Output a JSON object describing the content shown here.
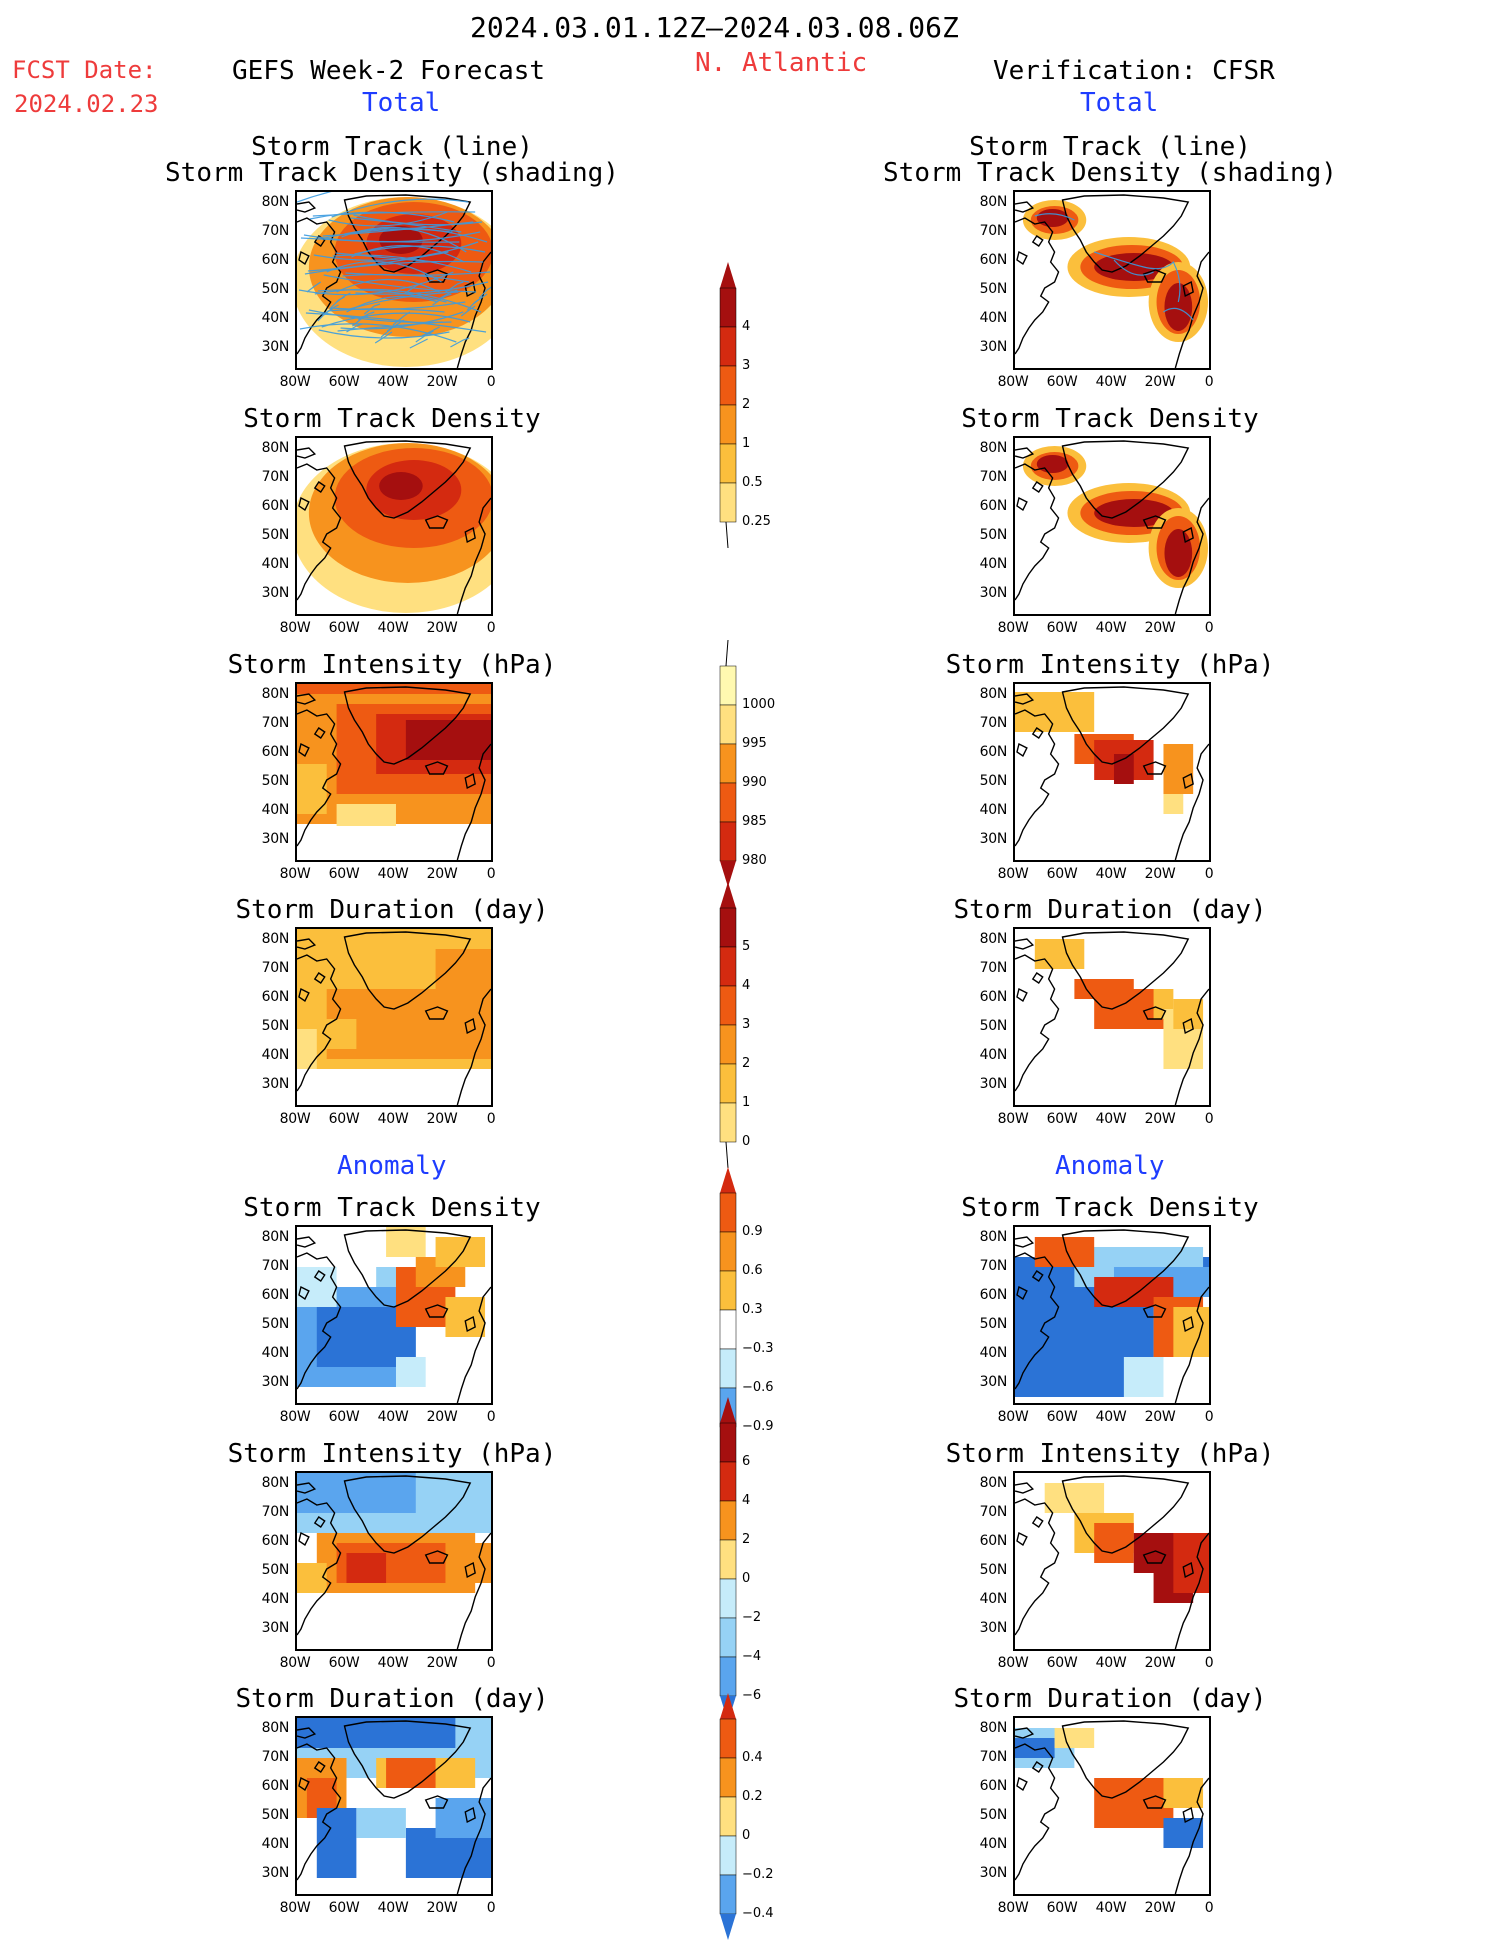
{
  "header": {
    "date_range": "2024.03.01.12Z–2024.03.08.06Z",
    "fcst_label": "FCST Date:",
    "fcst_date": "2024.02.23",
    "left_title": "GEFS Week-2 Forecast",
    "region": "N. Atlantic",
    "right_title": "Verification: CFSR",
    "total_label": "Total",
    "anomaly_label": "Anomaly"
  },
  "panel_titles": {
    "track_line": "Storm Track (line)",
    "track_density_shading": "Storm Track Density (shading)",
    "track_density": "Storm Track Density",
    "intensity": "Storm Intensity (hPa)",
    "duration": "Storm Duration (day)"
  },
  "axes": {
    "lat_labels": [
      "80N",
      "70N",
      "60N",
      "50N",
      "40N",
      "30N"
    ],
    "lon_labels": [
      "80W",
      "60W",
      "40W",
      "20W",
      "0"
    ]
  },
  "colorbars": {
    "density": [
      "4",
      "3",
      "2",
      "1",
      "0.5",
      "0.25"
    ],
    "intensity": [
      "1000",
      "995",
      "990",
      "985",
      "980"
    ],
    "duration": [
      "5",
      "4",
      "3",
      "2",
      "1",
      "0"
    ],
    "density_anom": [
      "0.9",
      "0.6",
      "0.3",
      "−0.3",
      "−0.6",
      "−0.9"
    ],
    "intensity_anom": [
      "6",
      "4",
      "2",
      "0",
      "−2",
      "−4",
      "−6"
    ],
    "duration_anom": [
      "0.4",
      "0.2",
      "0",
      "−0.2",
      "−0.4"
    ]
  },
  "colors": {
    "warm": [
      "#fff9b0",
      "#ffe080",
      "#fbbf3c",
      "#f7931e",
      "#ee5a12",
      "#d42a10",
      "#a50f0f"
    ],
    "cool": [
      "#ffffff",
      "#c6ecfa",
      "#96d2f5",
      "#5aa5ee",
      "#2b73d6",
      "#1a55bb"
    ],
    "track_blue": "#3a9be0"
  }
}
